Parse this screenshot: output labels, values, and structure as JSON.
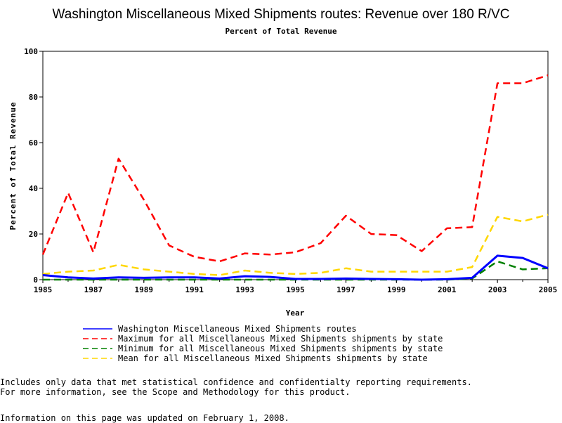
{
  "chart_data": {
    "type": "line",
    "title": "Washington Miscellaneous Mixed Shipments routes: Revenue over 180 R/VC",
    "subtitle": "Percent of Total Revenue",
    "xlabel": "Year",
    "ylabel": "Percent of Total Revenue",
    "xlim": [
      1985,
      2005
    ],
    "ylim": [
      0,
      100
    ],
    "x_ticks": [
      "1985",
      "1987",
      "1989",
      "1991",
      "1993",
      "1995",
      "1997",
      "1999",
      "2001",
      "2003",
      "2005"
    ],
    "y_ticks": [
      "0",
      "20",
      "40",
      "60",
      "80",
      "100"
    ],
    "x": [
      1985,
      1986,
      1987,
      1988,
      1989,
      1990,
      1991,
      1992,
      1993,
      1994,
      1995,
      1996,
      1997,
      1998,
      1999,
      2000,
      2001,
      2002,
      2003,
      2004,
      2005
    ],
    "series": [
      {
        "name": "Washington Miscellaneous Mixed Shipments routes",
        "color": "#0000ff",
        "style": "solid",
        "values": [
          2,
          1,
          0.5,
          1,
          0.8,
          1,
          1,
          0.5,
          1.5,
          1.2,
          0.3,
          0.3,
          0.5,
          0.3,
          0.2,
          0,
          0.2,
          0.8,
          10.5,
          9.5,
          5
        ]
      },
      {
        "name": "Maximum for all Miscellaneous Mixed Shipments shipments by state",
        "color": "#ff0000",
        "style": "dashed",
        "values": [
          11,
          38,
          12,
          53,
          35,
          15,
          10,
          8,
          11.5,
          11,
          12,
          16,
          28,
          20,
          19.5,
          12.5,
          22.5,
          23,
          86,
          86,
          89.5
        ]
      },
      {
        "name": "Minimum for all Miscellaneous Mixed Shipments shipments by state",
        "color": "#008000",
        "style": "dashed",
        "values": [
          0,
          0,
          0,
          0,
          0,
          0,
          0,
          0,
          0,
          0,
          0,
          0,
          0,
          0,
          0,
          0,
          0,
          0.5,
          8,
          4.5,
          5
        ]
      },
      {
        "name": "Mean for all Miscellaneous Mixed Shipments shipments by state",
        "color": "#ffd700",
        "style": "dashed",
        "values": [
          2.5,
          3.5,
          4,
          6.5,
          4.5,
          3.5,
          2.5,
          2,
          4,
          3,
          2.5,
          3,
          5,
          3.5,
          3.5,
          3.5,
          3.5,
          5.5,
          27.5,
          25.5,
          28.5
        ]
      }
    ]
  },
  "notes": [
    "Includes only data that met statistical confidence and confidentialty reporting requirements.",
    "For more information, see the Scope and Methodology for this product."
  ],
  "updated": "Information on this page was updated on February 1, 2008."
}
